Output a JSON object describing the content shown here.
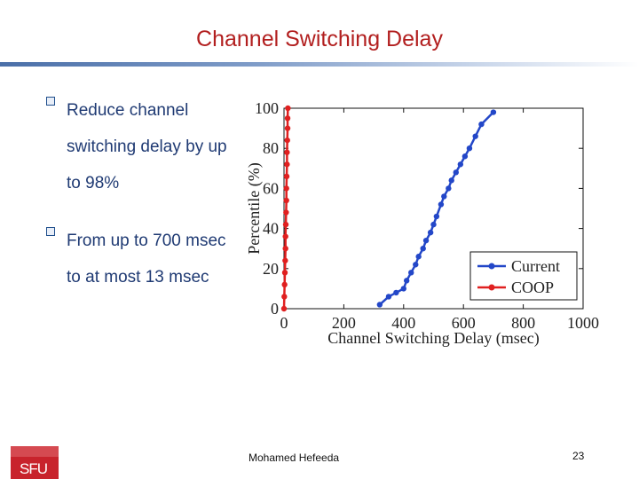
{
  "slide": {
    "title": "Channel Switching Delay",
    "bullets": [
      "Reduce channel switching delay by up to 98%",
      "From up to 700 msec to at most 13 msec"
    ],
    "footer_author": "Mohamed  Hefeeda",
    "page_number": "23",
    "logo_text": "SFU",
    "colors": {
      "title": "#b21f1f",
      "bullet_text": "#1f3a73",
      "logo": "#c8232c"
    }
  },
  "chart_data": {
    "type": "line",
    "xlabel": "Channel Switching Delay (msec)",
    "ylabel": "Percentile (%)",
    "xlim": [
      0,
      1000
    ],
    "ylim": [
      0,
      100
    ],
    "xticks": [
      "0",
      "200",
      "400",
      "600",
      "800",
      "1000"
    ],
    "yticks": [
      "0",
      "20",
      "40",
      "60",
      "80",
      "100"
    ],
    "legend_position": "bottom-right",
    "series": [
      {
        "name": "Current",
        "color": "#2347c8",
        "marker": "circle",
        "x": [
          320,
          350,
          375,
          400,
          410,
          425,
          440,
          450,
          465,
          475,
          490,
          500,
          510,
          525,
          535,
          550,
          560,
          575,
          590,
          605,
          620,
          640,
          660,
          700
        ],
        "y": [
          2,
          6,
          8,
          10,
          14,
          18,
          22,
          26,
          30,
          34,
          38,
          42,
          46,
          52,
          56,
          60,
          64,
          68,
          72,
          76,
          80,
          86,
          92,
          98
        ]
      },
      {
        "name": "COOP",
        "color": "#e02020",
        "marker": "circle",
        "x": [
          0,
          1,
          2,
          3,
          4,
          5,
          5,
          6,
          7,
          8,
          8,
          9,
          10,
          10,
          11,
          12,
          12,
          13
        ],
        "y": [
          0,
          6,
          12,
          18,
          24,
          30,
          36,
          42,
          48,
          54,
          60,
          66,
          72,
          78,
          84,
          90,
          95,
          100
        ]
      }
    ]
  }
}
